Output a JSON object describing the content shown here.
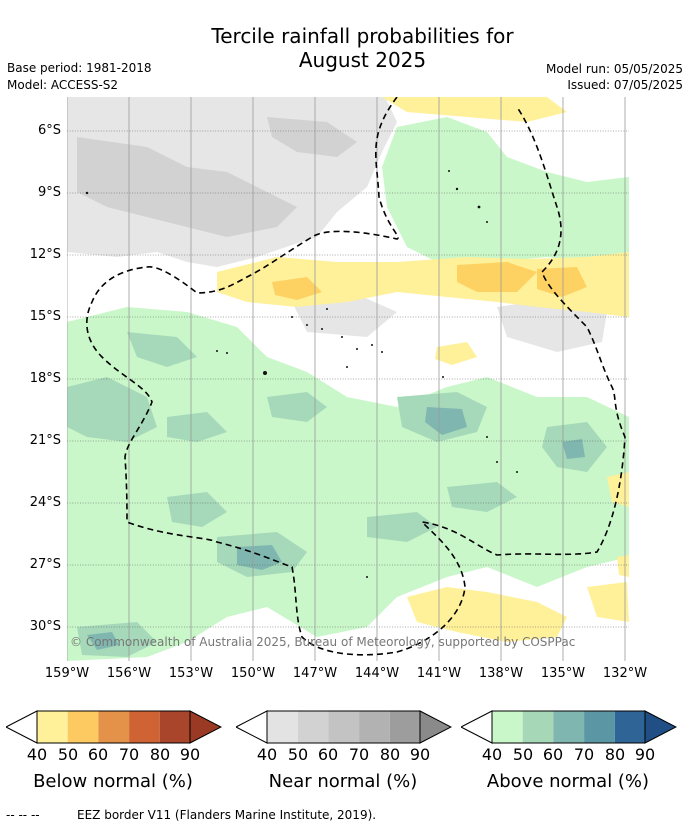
{
  "header": {
    "title_line1": "Tercile rainfall probabilities for",
    "title_line2": "August 2025",
    "base_period": "Base period: 1981-2018",
    "model": "Model: ACCESS-S2",
    "model_run": "Model run: 05/05/2025",
    "issued": "Issued: 07/05/2025"
  },
  "map": {
    "y_ticks": [
      "6°S",
      "9°S",
      "12°S",
      "15°S",
      "18°S",
      "21°S",
      "24°S",
      "27°S",
      "30°S"
    ],
    "x_ticks": [
      "159°W",
      "156°W",
      "153°W",
      "150°W",
      "147°W",
      "144°W",
      "141°W",
      "138°W",
      "135°W",
      "132°W"
    ],
    "copyright": "© Commonwealth of Australia 2025, Bureau of Meteorology, supported by COSPPac",
    "colors": {
      "below_40": "#fff09a",
      "below_50": "#fdd262",
      "near_40": "#e6e6e6",
      "near_50": "#d2d2d2",
      "above_40": "#c9f7c9",
      "above_50": "#a5d9b9",
      "above_60": "#7fb7b0",
      "above_70": "#5b96a4",
      "eez_line": "#000000"
    }
  },
  "legend": {
    "below": {
      "title": "Below normal (%)",
      "ticks": [
        "40",
        "50",
        "60",
        "70",
        "80",
        "90"
      ],
      "colors": [
        "#fff09a",
        "#fdca62",
        "#e4914a",
        "#cf6333",
        "#a9452a",
        "#9a3a24"
      ]
    },
    "near": {
      "title": "Near normal (%)",
      "ticks": [
        "40",
        "50",
        "60",
        "70",
        "80",
        "90"
      ],
      "colors": [
        "#e3e3e3",
        "#d2d2d2",
        "#c3c3c3",
        "#b2b2b2",
        "#9d9d9d",
        "#8a8a8a"
      ]
    },
    "above": {
      "title": "Above normal (%)",
      "ticks": [
        "40",
        "50",
        "60",
        "70",
        "80",
        "90"
      ],
      "colors": [
        "#c9f7c9",
        "#a6d8b8",
        "#7fb7b0",
        "#5b96a4",
        "#2f6496",
        "#1f4f85"
      ]
    }
  },
  "footer": {
    "line_sample": "-- -- --",
    "text": "EEZ border V11 (Flanders Marine Institute, 2019)."
  }
}
